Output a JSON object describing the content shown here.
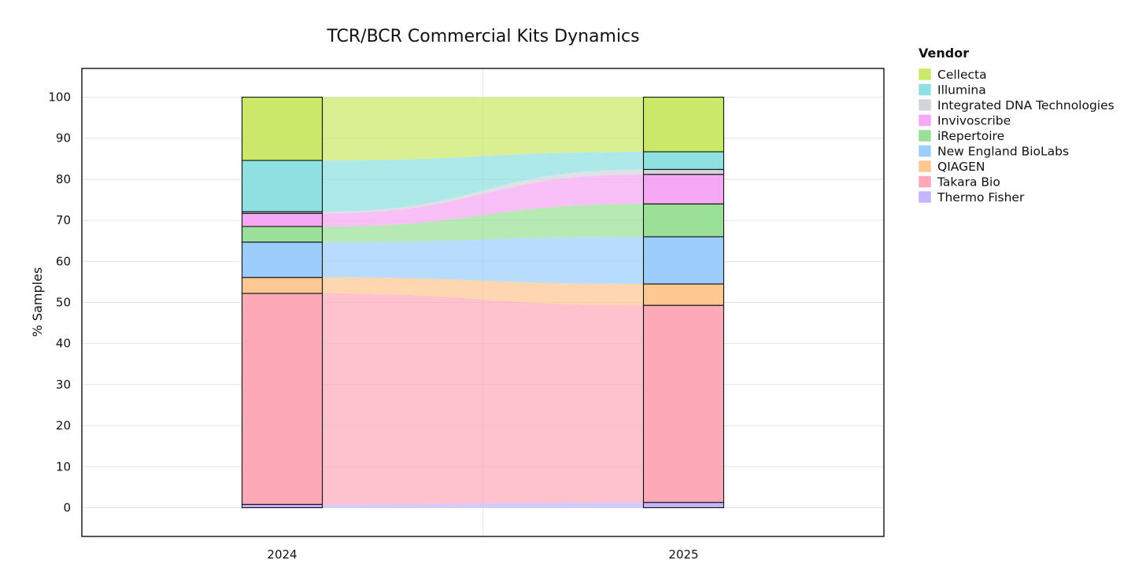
{
  "chart_data": {
    "type": "bar",
    "subtype": "stacked-100-with-flow-bands",
    "title": "TCR/BCR Commercial Kits Dynamics",
    "xlabel": "",
    "ylabel": "% Samples",
    "categories": [
      "2024",
      "2025"
    ],
    "ylim": [
      -7,
      107
    ],
    "yticks": [
      0,
      10,
      20,
      30,
      40,
      50,
      60,
      70,
      80,
      90,
      100
    ],
    "grid": true,
    "legend": {
      "title": "Vendor",
      "placement": "right"
    },
    "series": [
      {
        "name": "Thermo Fisher",
        "color": "#c4b5fd",
        "values": [
          0.8,
          1.3
        ]
      },
      {
        "name": "Takara Bio",
        "color": "#fdaab8",
        "values": [
          51.4,
          48.0
        ]
      },
      {
        "name": "QIAGEN",
        "color": "#fdc891",
        "values": [
          3.9,
          5.2
        ]
      },
      {
        "name": "New England BioLabs",
        "color": "#9dcefb",
        "values": [
          8.6,
          11.5
        ]
      },
      {
        "name": "iRepertoire",
        "color": "#9be099",
        "values": [
          3.8,
          8.0
        ]
      },
      {
        "name": "Invivoscribe",
        "color": "#f7a8f5",
        "values": [
          3.2,
          7.2
        ]
      },
      {
        "name": "Integrated DNA Technologies",
        "color": "#d1d5db",
        "values": [
          0.4,
          1.2
        ]
      },
      {
        "name": "Illumina",
        "color": "#8fe0e0",
        "values": [
          12.5,
          4.3
        ]
      },
      {
        "name": "Cellecta",
        "color": "#cbe968",
        "values": [
          15.4,
          13.3
        ]
      }
    ]
  }
}
